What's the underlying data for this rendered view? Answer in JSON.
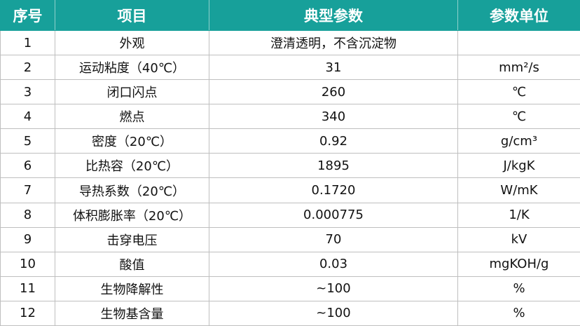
{
  "table": {
    "header": [
      "序号",
      "项目",
      "典型参数",
      "参数单位"
    ],
    "rows": [
      [
        "1",
        "外观",
        "澄清透明，不含沉淀物",
        ""
      ],
      [
        "2",
        "运动粘度（40℃）",
        "31",
        "mm²/s"
      ],
      [
        "3",
        "闭口闪点",
        "260",
        "℃"
      ],
      [
        "4",
        "燃点",
        "340",
        "℃"
      ],
      [
        "5",
        "密度（20℃）",
        "0.92",
        "g/cm³"
      ],
      [
        "6",
        "比热容（20℃）",
        "1895",
        "J/kgK"
      ],
      [
        "7",
        "导热系数（20℃）",
        "0.1720",
        "W/mK"
      ],
      [
        "8",
        "体积膨胀率（20℃）",
        "0.000775",
        "1/K"
      ],
      [
        "9",
        "击穿电压",
        "70",
        "kV"
      ],
      [
        "10",
        "酸值",
        "0.03",
        "mgKOH/g"
      ],
      [
        "11",
        "生物降解性",
        "~100",
        "%"
      ],
      [
        "12",
        "生物基含量",
        "~100",
        "%"
      ]
    ]
  }
}
